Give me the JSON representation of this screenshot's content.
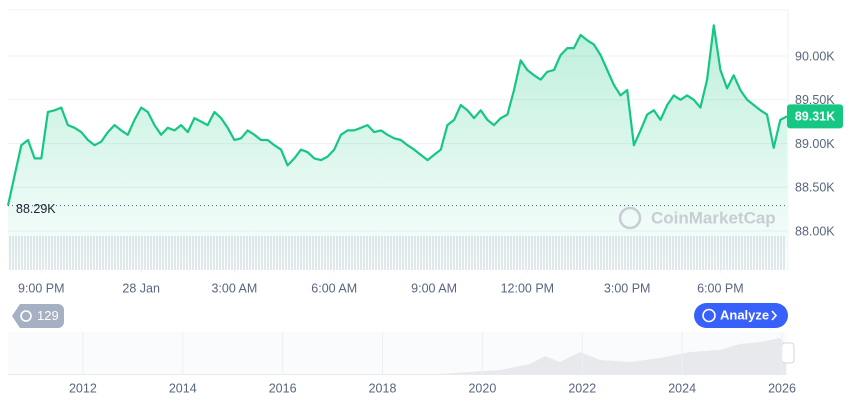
{
  "chart_data": {
    "type": "line",
    "color": "#16c784",
    "values": [
      88290,
      88640,
      88980,
      89040,
      88830,
      88830,
      89360,
      89380,
      89410,
      89210,
      89180,
      89130,
      89040,
      88980,
      89020,
      89130,
      89210,
      89150,
      89100,
      89270,
      89410,
      89360,
      89210,
      89100,
      89180,
      89150,
      89210,
      89130,
      89290,
      89250,
      89210,
      89360,
      89290,
      89180,
      89040,
      89060,
      89150,
      89100,
      89040,
      89040,
      88980,
      88930,
      88750,
      88830,
      88930,
      88900,
      88830,
      88810,
      88850,
      88930,
      89100,
      89150,
      89150,
      89180,
      89210,
      89130,
      89150,
      89100,
      89060,
      89040,
      88980,
      88930,
      88870,
      88810,
      88870,
      88930,
      89210,
      89270,
      89440,
      89380,
      89290,
      89380,
      89270,
      89210,
      89290,
      89330,
      89610,
      89950,
      89840,
      89780,
      89730,
      89820,
      89840,
      90010,
      90090,
      90090,
      90240,
      90180,
      90130,
      90010,
      89840,
      89670,
      89550,
      89610,
      88980,
      89150,
      89330,
      89380,
      89270,
      89440,
      89550,
      89500,
      89550,
      89500,
      89410,
      89730,
      90350,
      89840,
      89630,
      89780,
      89610,
      89500,
      89440,
      89380,
      89330,
      88950,
      89270,
      89310
    ],
    "xlim": [
      0,
      117
    ],
    "xticks": [
      {
        "value": 5,
        "label": "9:00 PM"
      },
      {
        "value": 20,
        "label": "28 Jan"
      },
      {
        "value": 34,
        "label": "3:00 AM"
      },
      {
        "value": 49,
        "label": "6:00 AM"
      },
      {
        "value": 64,
        "label": "9:00 AM"
      },
      {
        "value": 78,
        "label": "12:00 PM"
      },
      {
        "value": 93,
        "label": "3:00 PM"
      },
      {
        "value": 107,
        "label": "6:00 PM"
      }
    ],
    "ylim": [
      87554,
      90526
    ],
    "yticks": [
      {
        "value": 88000,
        "label": "88.00K"
      },
      {
        "value": 88500,
        "label": "88.50K"
      },
      {
        "value": 89000,
        "label": "89.00K"
      },
      {
        "value": 89500,
        "label": "89.50K"
      },
      {
        "value": 90000,
        "label": "90.00K"
      }
    ],
    "grid": true,
    "start_label": {
      "value": 88290,
      "label": "88.29K"
    },
    "last_label": {
      "value": 89310,
      "label": "89.31K"
    },
    "watermark": "CoinMarketCap",
    "navigator": {
      "xlim": [
        2010.5,
        2026.1
      ],
      "xticks": [
        2012,
        2014,
        2016,
        2018,
        2020,
        2022,
        2024,
        2026
      ]
    }
  },
  "controls": {
    "history_count": "129",
    "analyze_button": "Analyze"
  }
}
